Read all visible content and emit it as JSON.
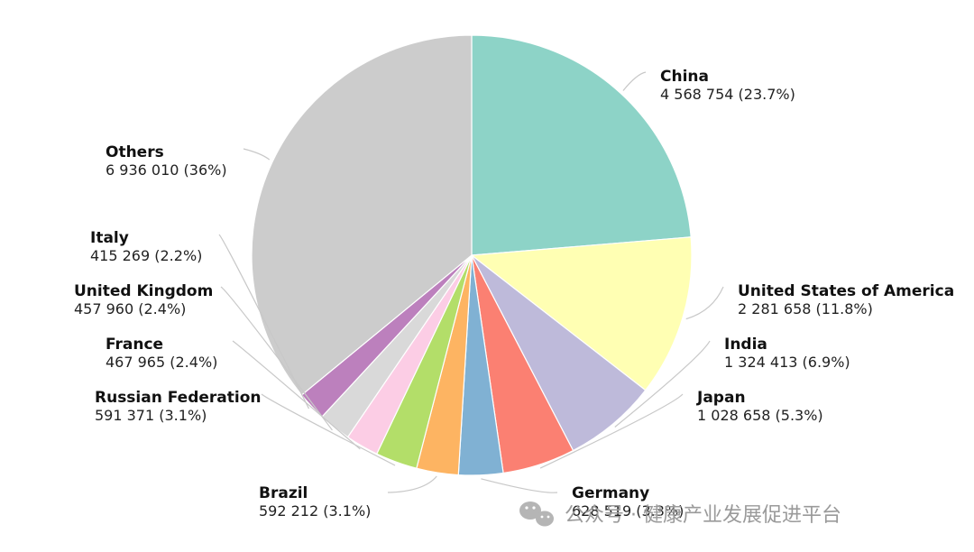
{
  "chart_data": {
    "type": "pie",
    "title": "",
    "slices": [
      {
        "name": "China",
        "value": 4568754,
        "percent_label": "(23.7%)",
        "value_label": "4 568 754",
        "color": "#8dd3c7"
      },
      {
        "name": "United States of America",
        "value": 2281658,
        "percent_label": "(11.8%)",
        "value_label": "2 281 658",
        "color": "#ffffb3"
      },
      {
        "name": "India",
        "value": 1324413,
        "percent_label": "(6.9%)",
        "value_label": "1 324 413",
        "color": "#bebada"
      },
      {
        "name": "Japan",
        "value": 1028658,
        "percent_label": "(5.3%)",
        "value_label": "1 028 658",
        "color": "#fb8072"
      },
      {
        "name": "Germany",
        "value": 628519,
        "percent_label": "(3.3%)",
        "value_label": "628 519",
        "color": "#80b1d3"
      },
      {
        "name": "Brazil",
        "value": 592212,
        "percent_label": "(3.1%)",
        "value_label": "592 212",
        "color": "#fdb462"
      },
      {
        "name": "Russian Federation",
        "value": 591371,
        "percent_label": "(3.1%)",
        "value_label": "591 371",
        "color": "#b3de69"
      },
      {
        "name": "France",
        "value": 467965,
        "percent_label": "(2.4%)",
        "value_label": "467 965",
        "color": "#fccde5"
      },
      {
        "name": "United Kingdom",
        "value": 457960,
        "percent_label": "(2.4%)",
        "value_label": "457 960",
        "color": "#d9d9d9"
      },
      {
        "name": "Italy",
        "value": 415269,
        "percent_label": "(2.2%)",
        "value_label": "415 269",
        "color": "#bc80bd"
      },
      {
        "name": "Others",
        "value": 6936010,
        "percent_label": "(36%)",
        "value_label": "6 936 010",
        "color": "#cccccc"
      }
    ],
    "start_angle_deg": 0,
    "direction": "clockwise",
    "legend": "none",
    "labels": "outside-with-leader-lines"
  },
  "watermark": {
    "text": "公众号 · 健康产业发展促进平台",
    "icon": "wechat-icon"
  }
}
